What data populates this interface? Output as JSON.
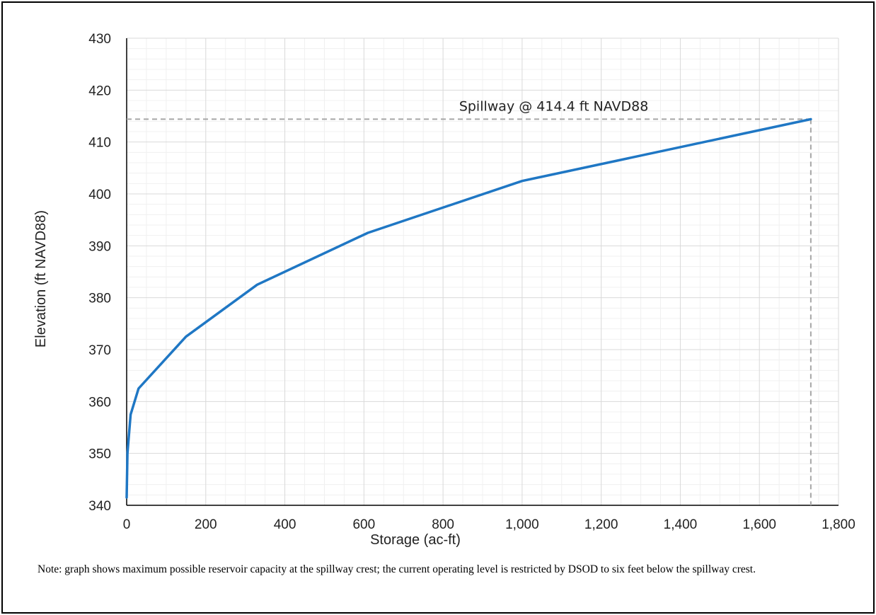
{
  "chart_data": {
    "type": "line",
    "title": "",
    "xlabel": "Storage (ac-ft)",
    "ylabel": "Elevation (ft NAVD88)",
    "xlim": [
      0,
      1800
    ],
    "ylim": [
      340,
      430
    ],
    "x_ticks": [
      0,
      200,
      400,
      600,
      800,
      1000,
      1200,
      1400,
      1600,
      1800
    ],
    "x_tick_labels": [
      "0",
      "200",
      "400",
      "600",
      "800",
      "1,000",
      "1,200",
      "1,400",
      "1,600",
      "1,800"
    ],
    "y_ticks": [
      340,
      350,
      360,
      370,
      380,
      390,
      400,
      410,
      420,
      430
    ],
    "y_tick_labels": [
      "340",
      "350",
      "360",
      "370",
      "380",
      "390",
      "400",
      "410",
      "420",
      "430"
    ],
    "grid": true,
    "series": [
      {
        "color": "#1f77c4",
        "x": [
          0,
          2,
          10,
          30,
          150,
          330,
          610,
          1000,
          1730
        ],
        "y": [
          341.5,
          350,
          357.5,
          362.5,
          372.5,
          382.5,
          392.5,
          402.5,
          414.4
        ]
      }
    ],
    "reference_lines": {
      "y": 414.4,
      "x": 1730,
      "style": "dashed",
      "color": "#a6a6a6"
    },
    "annotations": [
      {
        "text": "Spillway @ 414.4 ft NAVD88",
        "x": 1080,
        "y": 416
      }
    ]
  },
  "note": "Note: graph shows maximum possible reservoir capacity at the spillway crest; the current operating level is restricted by DSOD to six feet below the spillway crest."
}
